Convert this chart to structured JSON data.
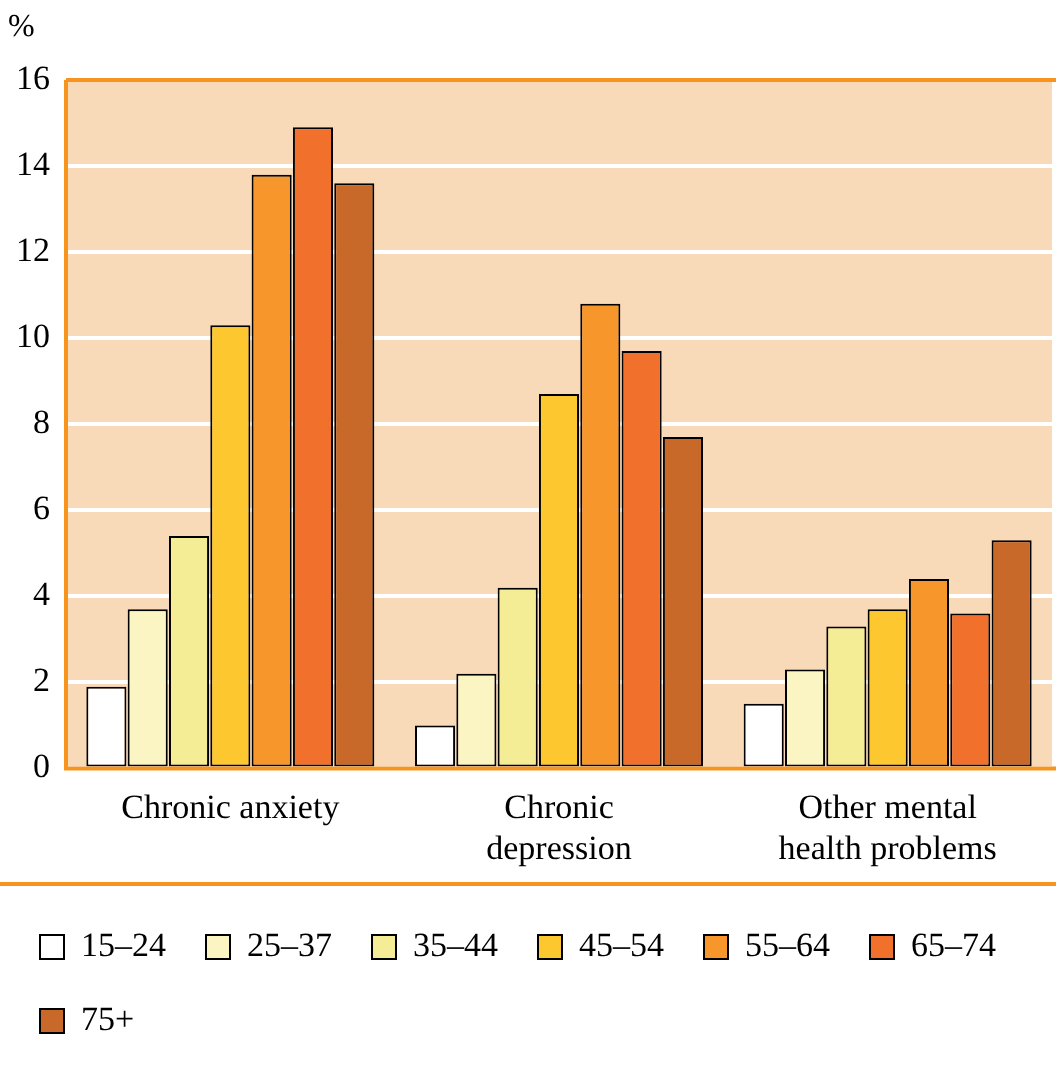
{
  "chart_data": {
    "type": "bar",
    "ylabel": "%",
    "categories": [
      "Chronic anxiety",
      "Chronic depression",
      "Other mental health problems"
    ],
    "series": [
      {
        "name": "15–24",
        "color": "#ffffff",
        "values": [
          1.9,
          1.0,
          1.5
        ]
      },
      {
        "name": "25–37",
        "color": "#fbf5c4",
        "values": [
          3.7,
          2.2,
          2.3
        ]
      },
      {
        "name": "35–44",
        "color": "#f5ed96",
        "values": [
          5.4,
          4.2,
          3.3
        ]
      },
      {
        "name": "45–54",
        "color": "#fdc82f",
        "values": [
          10.3,
          8.7,
          3.7
        ]
      },
      {
        "name": "55–64",
        "color": "#f7962b",
        "values": [
          13.8,
          10.8,
          4.4
        ]
      },
      {
        "name": "65–74",
        "color": "#f1702c",
        "values": [
          14.9,
          9.7,
          3.6
        ]
      },
      {
        "name": "75+",
        "color": "#c8692a",
        "values": [
          13.6,
          7.7,
          5.3
        ]
      }
    ],
    "ylim": [
      0,
      16
    ],
    "yticks": [
      0,
      2,
      4,
      6,
      8,
      10,
      12,
      14,
      16
    ],
    "grid": "y",
    "legend": "bottom"
  }
}
